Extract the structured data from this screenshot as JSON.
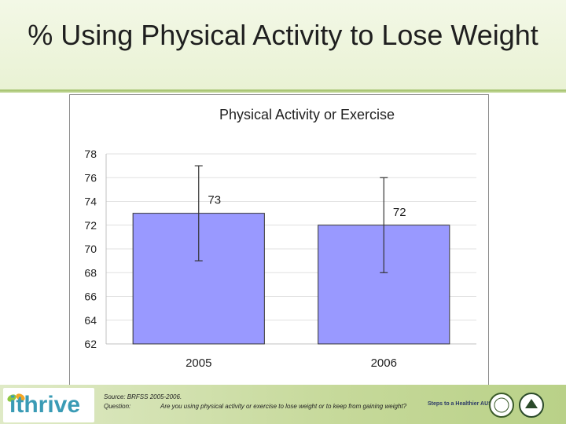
{
  "slide": {
    "title": "% Using Physical Activity to Lose Weight"
  },
  "footer": {
    "logo_text": "ithrive",
    "source_line": "Source: BRFSS 2005-2006.",
    "question_label": "Question:",
    "question_text": "Are you using physical activity or exercise to lose weight or to keep from gaining weight?",
    "partner_logo_text": "Steps to a Healthier AUSTIN"
  },
  "colors": {
    "bar_fill": "#9999ff",
    "bar_stroke": "#333333",
    "error_bar": "#333333",
    "grid": "#e0e0e0"
  },
  "chart_data": {
    "type": "bar",
    "title": "Physical Activity or Exercise",
    "xlabel": "",
    "ylabel": "",
    "categories": [
      "2005",
      "2006"
    ],
    "values": [
      73,
      72
    ],
    "data_labels": [
      "73",
      "72"
    ],
    "error_low": [
      69,
      68
    ],
    "error_high": [
      77,
      76
    ],
    "ylim": [
      62,
      78
    ],
    "yticks": [
      62,
      64,
      66,
      68,
      70,
      72,
      74,
      76,
      78
    ],
    "grid": true,
    "legend": "none"
  }
}
